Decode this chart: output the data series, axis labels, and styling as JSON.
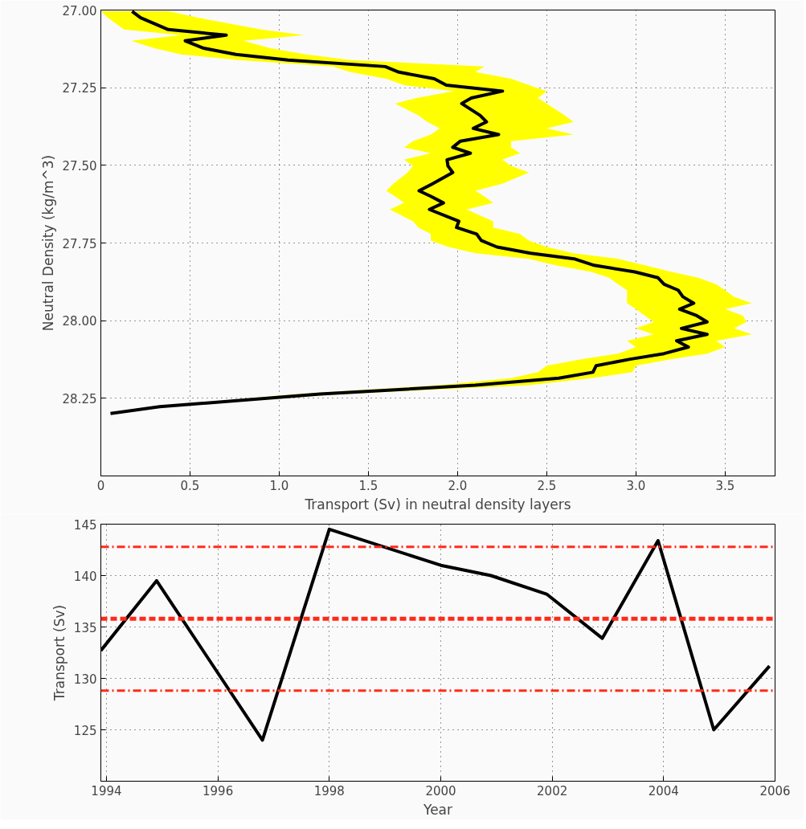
{
  "chart_data": [
    {
      "type": "line",
      "orientation": "horizontal",
      "xlabel": "Transport (Sv) in neutral density layers",
      "ylabel": "Neutral Density (kg/m^3)",
      "xlim": [
        0,
        3.78
      ],
      "xticks": [
        0,
        0.5,
        {
          "value": 1,
          "label": "1.0"
        },
        1.5,
        {
          "value": 2,
          "label": "2.0"
        },
        2.5,
        {
          "value": 3,
          "label": "3.0"
        },
        3.5
      ],
      "ylim": [
        28.5,
        27.0
      ],
      "yticks": [
        {
          "value": 27.0,
          "label": "27.00"
        },
        27.25,
        {
          "value": 27.5,
          "label": "27.50"
        },
        27.75,
        {
          "value": 28.0,
          "label": "28.00"
        },
        28.25
      ],
      "grid": true,
      "marker": "none",
      "line_style": "solid",
      "series": [
        {
          "color": "#000000",
          "x": [
            27.004,
            27.025,
            27.063,
            27.081,
            27.099,
            27.123,
            27.143,
            27.161,
            27.182,
            27.2,
            27.221,
            27.242,
            27.261,
            27.283,
            27.301,
            27.339,
            27.36,
            27.381,
            27.401,
            27.422,
            27.442,
            27.461,
            27.482,
            27.502,
            27.523,
            27.559,
            27.582,
            27.6,
            27.621,
            27.642,
            27.68,
            27.7,
            27.721,
            27.742,
            27.763,
            27.783,
            27.801,
            27.822,
            27.843,
            27.862,
            27.883,
            27.902,
            27.923,
            27.944,
            27.963,
            27.984,
            28.004,
            28.025,
            28.044,
            28.065,
            28.085,
            28.106,
            28.124,
            28.145,
            28.166,
            28.185,
            28.208,
            28.236,
            28.277,
            28.299
          ],
          "values": [
            0.175,
            0.223,
            0.378,
            0.703,
            0.473,
            0.577,
            0.757,
            1.05,
            1.594,
            1.671,
            1.869,
            1.937,
            2.252,
            2.077,
            2.023,
            2.126,
            2.162,
            2.088,
            2.23,
            2.016,
            1.973,
            2.072,
            1.941,
            1.946,
            1.973,
            1.86,
            1.784,
            1.851,
            1.921,
            1.842,
            2.007,
            1.994,
            2.107,
            2.133,
            2.221,
            2.41,
            2.653,
            2.766,
            2.994,
            3.124,
            3.158,
            3.237,
            3.263,
            3.324,
            3.245,
            3.341,
            3.399,
            3.255,
            3.399,
            3.228,
            3.294,
            3.158,
            2.968,
            2.777,
            2.759,
            2.568,
            2.099,
            1.23,
            0.33,
            0.054
          ],
          "lower": [
            0.0,
            0.04,
            0.13,
            0.45,
            0.17,
            0.3,
            0.45,
            0.77,
            1.3,
            1.4,
            1.6,
            1.7,
            1.98,
            1.77,
            1.65,
            1.78,
            1.83,
            1.9,
            1.85,
            1.75,
            1.7,
            1.85,
            1.7,
            1.75,
            1.72,
            1.64,
            1.6,
            1.65,
            1.7,
            1.62,
            1.75,
            1.78,
            1.85,
            1.85,
            1.95,
            2.1,
            2.4,
            2.55,
            2.75,
            2.85,
            2.9,
            2.95,
            2.95,
            2.95,
            3.0,
            3.05,
            3.1,
            3.0,
            3.1,
            2.95,
            3.0,
            2.9,
            2.7,
            2.5,
            2.45,
            2.3,
            1.9,
            1.1,
            0.3,
            0.05
          ],
          "upper": [
            0.38,
            0.55,
            0.9,
            1.14,
            0.8,
            0.95,
            1.15,
            1.4,
            2.15,
            2.1,
            2.3,
            2.4,
            2.5,
            2.45,
            2.5,
            2.6,
            2.65,
            2.5,
            2.65,
            2.3,
            2.3,
            2.35,
            2.25,
            2.3,
            2.4,
            2.25,
            2.1,
            2.15,
            2.2,
            2.05,
            2.2,
            2.2,
            2.35,
            2.4,
            2.5,
            2.65,
            2.9,
            3.05,
            3.2,
            3.35,
            3.45,
            3.5,
            3.55,
            3.65,
            3.5,
            3.6,
            3.62,
            3.55,
            3.65,
            3.45,
            3.5,
            3.4,
            3.2,
            3.0,
            2.98,
            2.75,
            2.4,
            1.35,
            0.36,
            0.06
          ]
        }
      ]
    },
    {
      "type": "line",
      "xlabel": "Year",
      "ylabel": "Transport (Sv)",
      "xlim": [
        1993.9,
        2006
      ],
      "xticks": [
        1994,
        1996,
        1998,
        2000,
        2002,
        2004,
        2006
      ],
      "ylim": [
        120,
        145
      ],
      "yticks": [
        125,
        130,
        135,
        140,
        145
      ],
      "grid": true,
      "marker": "none",
      "line_style": "solid",
      "series": [
        {
          "color": "#000000",
          "x": [
            1993.9,
            1994.9,
            1996.8,
            1998,
            2000,
            2000.9,
            2001.9,
            2002.9,
            2003.9,
            2004.9,
            2005.9
          ],
          "values": [
            132.7,
            139.5,
            124,
            144.5,
            141,
            140,
            138.2,
            133.9,
            143.4,
            125,
            131.2
          ]
        }
      ],
      "ref_lines": [
        {
          "axis": "y",
          "value": 142.8,
          "color": "#ff2a1a",
          "line_style": "dashdot"
        },
        {
          "axis": "y",
          "value": 135.8,
          "color": "#ff2a1a",
          "line_style": "dashed"
        },
        {
          "axis": "y",
          "value": 128.8,
          "color": "#ff2a1a",
          "line_style": "dashdot"
        }
      ]
    }
  ]
}
